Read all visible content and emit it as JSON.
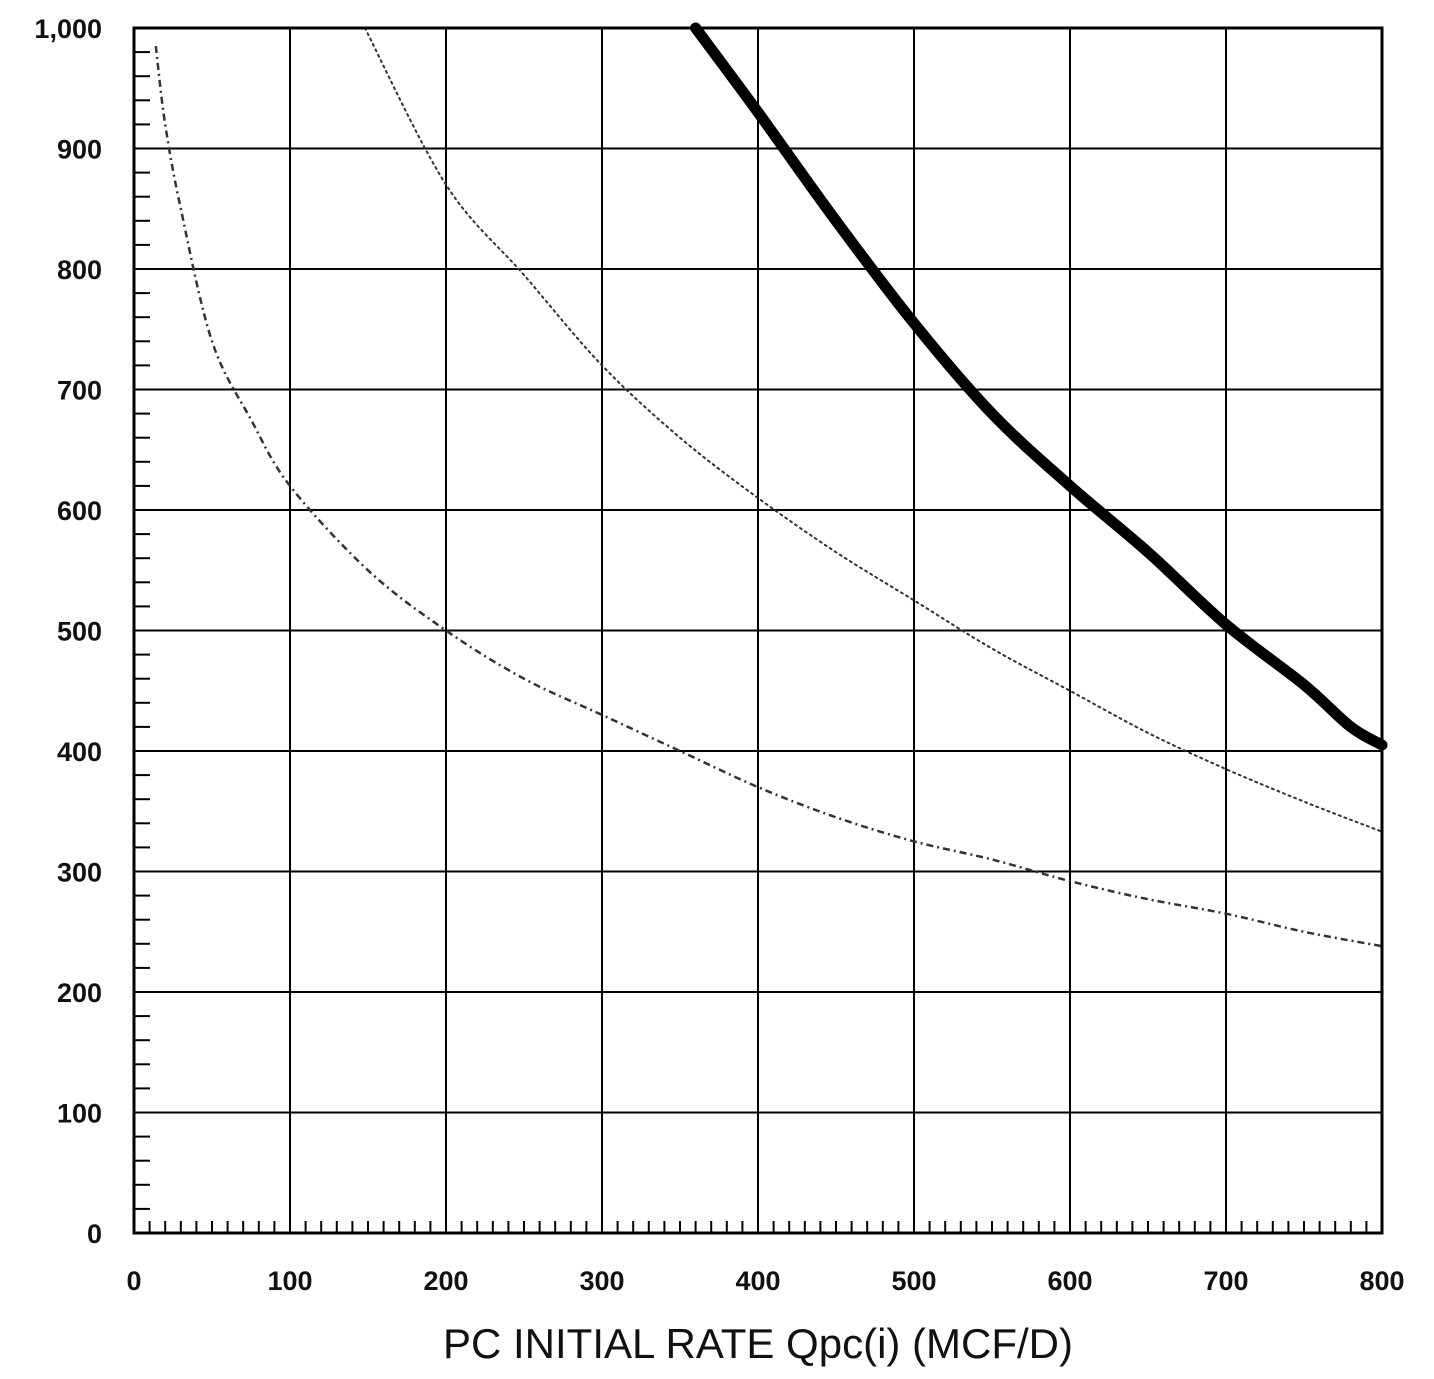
{
  "chart_data": {
    "type": "line",
    "title": "",
    "xlabel": "PC  INITIAL RATE Qpc(i) (MCF/D)",
    "ylabel": "",
    "xlim": [
      0,
      800
    ],
    "ylim": [
      0,
      1000
    ],
    "x_ticks": [
      "0",
      "100",
      "200",
      "300",
      "400",
      "500",
      "600",
      "700",
      "800"
    ],
    "y_ticks": [
      "0",
      "100",
      "200",
      "300",
      "400",
      "500",
      "600",
      "700",
      "800",
      "900",
      "1,000"
    ],
    "grid": true,
    "legend": "none",
    "series": [
      {
        "style": "thick-solid",
        "color": "#000000",
        "points": [
          [
            360,
            1000
          ],
          [
            400,
            930
          ],
          [
            450,
            840
          ],
          [
            500,
            755
          ],
          [
            550,
            680
          ],
          [
            600,
            620
          ],
          [
            650,
            565
          ],
          [
            700,
            505
          ],
          [
            750,
            455
          ],
          [
            780,
            420
          ],
          [
            800,
            405
          ]
        ]
      },
      {
        "style": "dotted",
        "color": "#333333",
        "points": [
          [
            148,
            1000
          ],
          [
            200,
            870
          ],
          [
            250,
            795
          ],
          [
            300,
            720
          ],
          [
            350,
            660
          ],
          [
            400,
            610
          ],
          [
            450,
            565
          ],
          [
            500,
            525
          ],
          [
            550,
            485
          ],
          [
            600,
            450
          ],
          [
            650,
            415
          ],
          [
            700,
            385
          ],
          [
            750,
            358
          ],
          [
            800,
            333
          ]
        ]
      },
      {
        "style": "dash-dot",
        "color": "#333333",
        "points": [
          [
            14,
            985
          ],
          [
            20,
            920
          ],
          [
            30,
            850
          ],
          [
            50,
            740
          ],
          [
            75,
            675
          ],
          [
            100,
            620
          ],
          [
            150,
            550
          ],
          [
            200,
            500
          ],
          [
            250,
            460
          ],
          [
            300,
            430
          ],
          [
            350,
            400
          ],
          [
            400,
            370
          ],
          [
            450,
            345
          ],
          [
            500,
            325
          ],
          [
            550,
            310
          ],
          [
            600,
            292
          ],
          [
            650,
            277
          ],
          [
            700,
            265
          ],
          [
            750,
            250
          ],
          [
            800,
            238
          ]
        ]
      }
    ]
  }
}
